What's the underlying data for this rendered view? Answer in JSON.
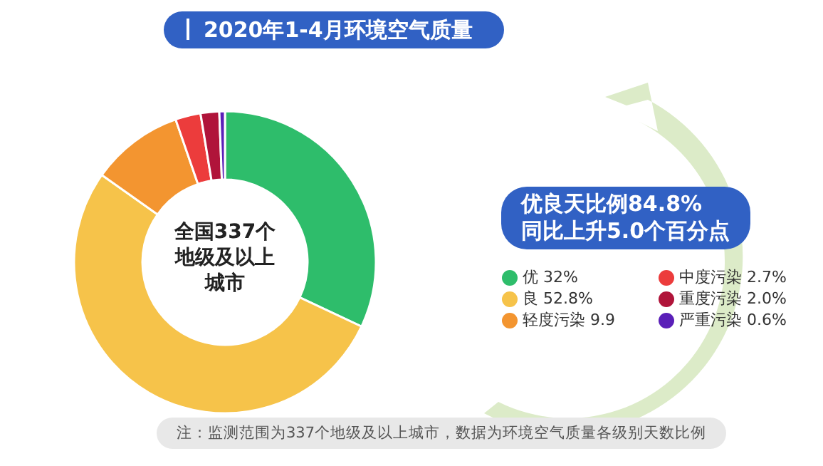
{
  "chart_data": {
    "type": "donut",
    "title": "2020年1-4月环境空气质量",
    "categories": [
      "优",
      "良",
      "轻度污染",
      "中度污染",
      "重度污染",
      "严重污染"
    ],
    "values": [
      32,
      52.8,
      9.9,
      2.7,
      2.0,
      0.6
    ],
    "value_labels": [
      "32%",
      "52.8%",
      "9.9",
      "2.7%",
      "2.0%",
      "0.6%"
    ],
    "colors": [
      "#2ebd6b",
      "#f6c34a",
      "#f39530",
      "#ec3c3c",
      "#b0143a",
      "#5a1fb8"
    ],
    "legend": "right",
    "annotations": [
      "全国337个地级及以上城市",
      "优良天比例84.8%",
      "同比上升5.0个百分点",
      "注：监测范围为337个地级及以上城市，数据为环境空气质量各级别天数比例"
    ]
  }
}
